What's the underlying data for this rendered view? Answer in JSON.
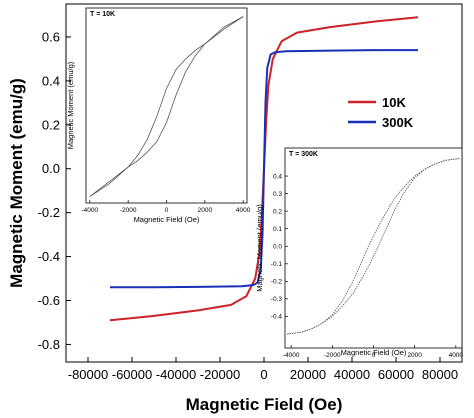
{
  "chart_data": {
    "type": "line",
    "title": "",
    "xlabel": "Magnetic Field (Oe)",
    "ylabel": "Magnetic Moment (emu/g)",
    "xlim": [
      -90000,
      90000
    ],
    "ylim": [
      -0.88,
      0.75
    ],
    "x_ticks": [
      -80000,
      -60000,
      -40000,
      -20000,
      0,
      20000,
      40000,
      60000,
      80000
    ],
    "y_ticks": [
      -0.8,
      -0.6,
      -0.4,
      -0.2,
      0.0,
      0.2,
      0.4,
      0.6
    ],
    "x_tick_labels": [
      "-80000",
      "-60000",
      "-40000",
      "-20000",
      "0",
      "20000",
      "40000",
      "60000",
      "80000"
    ],
    "y_tick_labels": [
      "-0.8",
      "-0.6",
      "-0.4",
      "-0.2",
      "0.0",
      "0.2",
      "0.4",
      "0.6"
    ],
    "grid": false,
    "legend_position": "center-right",
    "series": [
      {
        "name": "10K",
        "color": "#cc2228",
        "x": [
          -70000,
          -50000,
          -30000,
          -15000,
          -8000,
          -4000,
          -2000,
          -1000,
          0,
          1000,
          2000,
          4000,
          8000,
          15000,
          30000,
          50000,
          70000
        ],
        "y": [
          -0.69,
          -0.67,
          -0.645,
          -0.62,
          -0.58,
          -0.5,
          -0.38,
          -0.22,
          0.0,
          0.22,
          0.38,
          0.5,
          0.58,
          0.62,
          0.645,
          0.67,
          0.69
        ]
      },
      {
        "name": "300K",
        "color": "#1a2fb8",
        "x": [
          -70000,
          -50000,
          -30000,
          -10000,
          -5000,
          -3000,
          -1500,
          -700,
          0,
          700,
          1500,
          3000,
          5000,
          10000,
          30000,
          50000,
          70000
        ],
        "y": [
          -0.54,
          -0.54,
          -0.538,
          -0.535,
          -0.53,
          -0.52,
          -0.46,
          -0.3,
          0.0,
          0.3,
          0.46,
          0.52,
          0.53,
          0.535,
          0.538,
          0.54,
          0.54
        ]
      }
    ],
    "insets": [
      {
        "title": "T = 10K",
        "xlabel": "Magnetic Field (Oe)",
        "ylabel": "Magnetic Moment (emu/g)",
        "xlim": [
          -4200,
          4200
        ],
        "ylim": [
          -0.46,
          0.46
        ],
        "x_ticks": [
          -4000,
          -2000,
          0,
          2000,
          4000
        ],
        "x_tick_labels": [
          "-4000",
          "-2000",
          "0",
          "2000",
          "4000"
        ],
        "color": "#555555",
        "upper": {
          "x": [
            -4000,
            -3000,
            -2000,
            -1500,
            -1000,
            -500,
            0,
            500,
            1000,
            1500,
            2000,
            3000,
            4000
          ],
          "y": [
            -0.43,
            -0.37,
            -0.29,
            -0.235,
            -0.16,
            -0.05,
            0.08,
            0.17,
            0.22,
            0.26,
            0.29,
            0.36,
            0.42
          ]
        },
        "lower": {
          "x": [
            -4000,
            -3000,
            -2000,
            -1500,
            -1000,
            -500,
            0,
            500,
            1000,
            1500,
            2000,
            3000,
            4000
          ],
          "y": [
            -0.43,
            -0.36,
            -0.29,
            -0.26,
            -0.22,
            -0.17,
            -0.08,
            0.05,
            0.16,
            0.235,
            0.29,
            0.37,
            0.42
          ]
        }
      },
      {
        "title": "T = 300K",
        "xlabel": "Magnetic Field (Oe)",
        "ylabel": "Magnetic Moment (emu/g)",
        "xlim": [
          -4300,
          4300
        ],
        "ylim": [
          -0.58,
          0.56
        ],
        "x_ticks": [
          -4000,
          -2000,
          0,
          2000,
          4000
        ],
        "y_ticks": [
          -0.4,
          -0.3,
          -0.2,
          -0.1,
          0.0,
          0.1,
          0.2,
          0.3,
          0.4
        ],
        "x_tick_labels": [
          "-4000",
          "-2000",
          "0",
          "2000",
          "4000"
        ],
        "y_tick_labels": [
          "-0.4",
          "-0.3",
          "-0.2",
          "-0.1",
          "0.0",
          "0.1",
          "0.2",
          "0.3",
          "0.4"
        ],
        "color": "#555555",
        "upper": {
          "x": [
            -4200,
            -3500,
            -3000,
            -2500,
            -2000,
            -1500,
            -1000,
            -500,
            0,
            500,
            1000,
            1500,
            2000,
            2500,
            3000,
            3500,
            4200
          ],
          "y": [
            -0.5,
            -0.49,
            -0.47,
            -0.44,
            -0.39,
            -0.31,
            -0.2,
            -0.07,
            0.06,
            0.17,
            0.27,
            0.34,
            0.4,
            0.44,
            0.47,
            0.49,
            0.5
          ]
        },
        "lower": {
          "x": [
            -4200,
            -3500,
            -3000,
            -2500,
            -2000,
            -1500,
            -1000,
            -500,
            0,
            500,
            1000,
            1500,
            2000,
            2500,
            3000,
            3500,
            4200
          ],
          "y": [
            -0.5,
            -0.49,
            -0.47,
            -0.44,
            -0.4,
            -0.34,
            -0.27,
            -0.17,
            -0.06,
            0.07,
            0.2,
            0.31,
            0.39,
            0.44,
            0.47,
            0.49,
            0.5
          ]
        }
      }
    ]
  }
}
